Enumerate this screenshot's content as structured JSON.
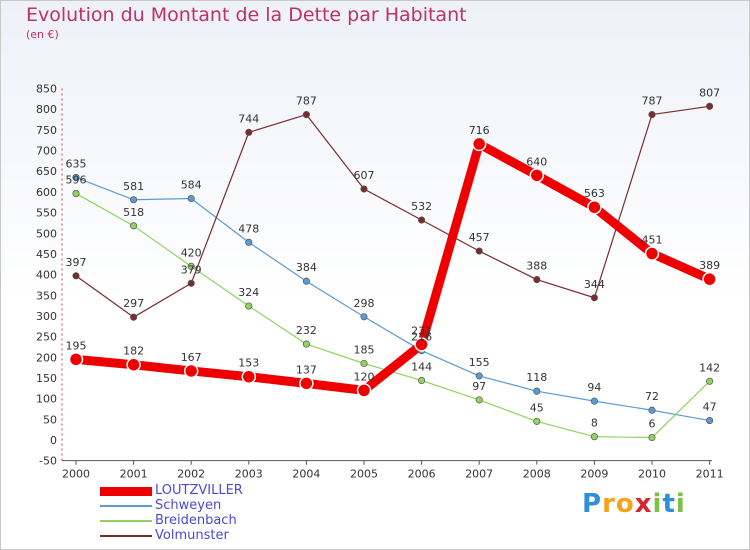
{
  "title": "Evolution du Montant de la Dette par Habitant",
  "unit": "(en €)",
  "logo": {
    "text": "Proxiti",
    "letters": [
      "P",
      "r",
      "o",
      "x",
      "i",
      "t",
      "i"
    ],
    "colors": [
      "#2f8fd8",
      "#f2a51a",
      "#f2a51a",
      "#d8262a",
      "#7cc142",
      "#2f8fd8",
      "#7cc142"
    ]
  },
  "chart_data": {
    "type": "line",
    "title": "Evolution du Montant de la Dette par Habitant",
    "ylabel": "(en €)",
    "xlabel": "",
    "x": [
      "2000",
      "2001",
      "2002",
      "2003",
      "2004",
      "2005",
      "2006",
      "2007",
      "2008",
      "2009",
      "2010",
      "2011"
    ],
    "ylim": [
      -50,
      850
    ],
    "yticks": [
      -50,
      0,
      50,
      100,
      150,
      200,
      250,
      300,
      350,
      400,
      450,
      500,
      550,
      600,
      650,
      700,
      750,
      800,
      850
    ],
    "grid": false,
    "legend_position": "bottom-left",
    "series": [
      {
        "name": "LOUTZVILLER",
        "color": "#ee0000",
        "emphasis": true,
        "values": [
          195,
          182,
          167,
          153,
          137,
          120,
          231,
          716,
          640,
          563,
          451,
          389
        ],
        "labels": [
          "195",
          "182",
          "167",
          "153",
          "137",
          "120",
          "231",
          "716",
          "640",
          "563",
          "451",
          "389"
        ]
      },
      {
        "name": "Schweyen",
        "color": "#5b9bd5",
        "emphasis": false,
        "values": [
          635,
          581,
          584,
          478,
          384,
          298,
          216,
          155,
          118,
          94,
          72,
          47
        ],
        "labels": [
          "635",
          "581",
          "584",
          "478",
          "384",
          "298",
          "216",
          "155",
          "118",
          "94",
          "72",
          "47"
        ]
      },
      {
        "name": "Breidenbach",
        "color": "#8ed45e",
        "emphasis": false,
        "values": [
          596,
          518,
          420,
          324,
          232,
          185,
          144,
          97,
          45,
          8,
          6,
          142
        ],
        "labels": [
          "596",
          "518",
          "420",
          "324",
          "232",
          "185",
          "144",
          "97",
          "45",
          "8",
          "6",
          "142"
        ]
      },
      {
        "name": "Volmunster",
        "color": "#7b2c2c",
        "emphasis": false,
        "values": [
          397,
          297,
          379,
          744,
          787,
          607,
          532,
          457,
          388,
          344,
          787,
          807
        ],
        "labels": [
          "397",
          "297",
          "379",
          "744",
          "787",
          "607",
          "532",
          "457",
          "388",
          "344",
          "787",
          "807"
        ]
      }
    ]
  }
}
